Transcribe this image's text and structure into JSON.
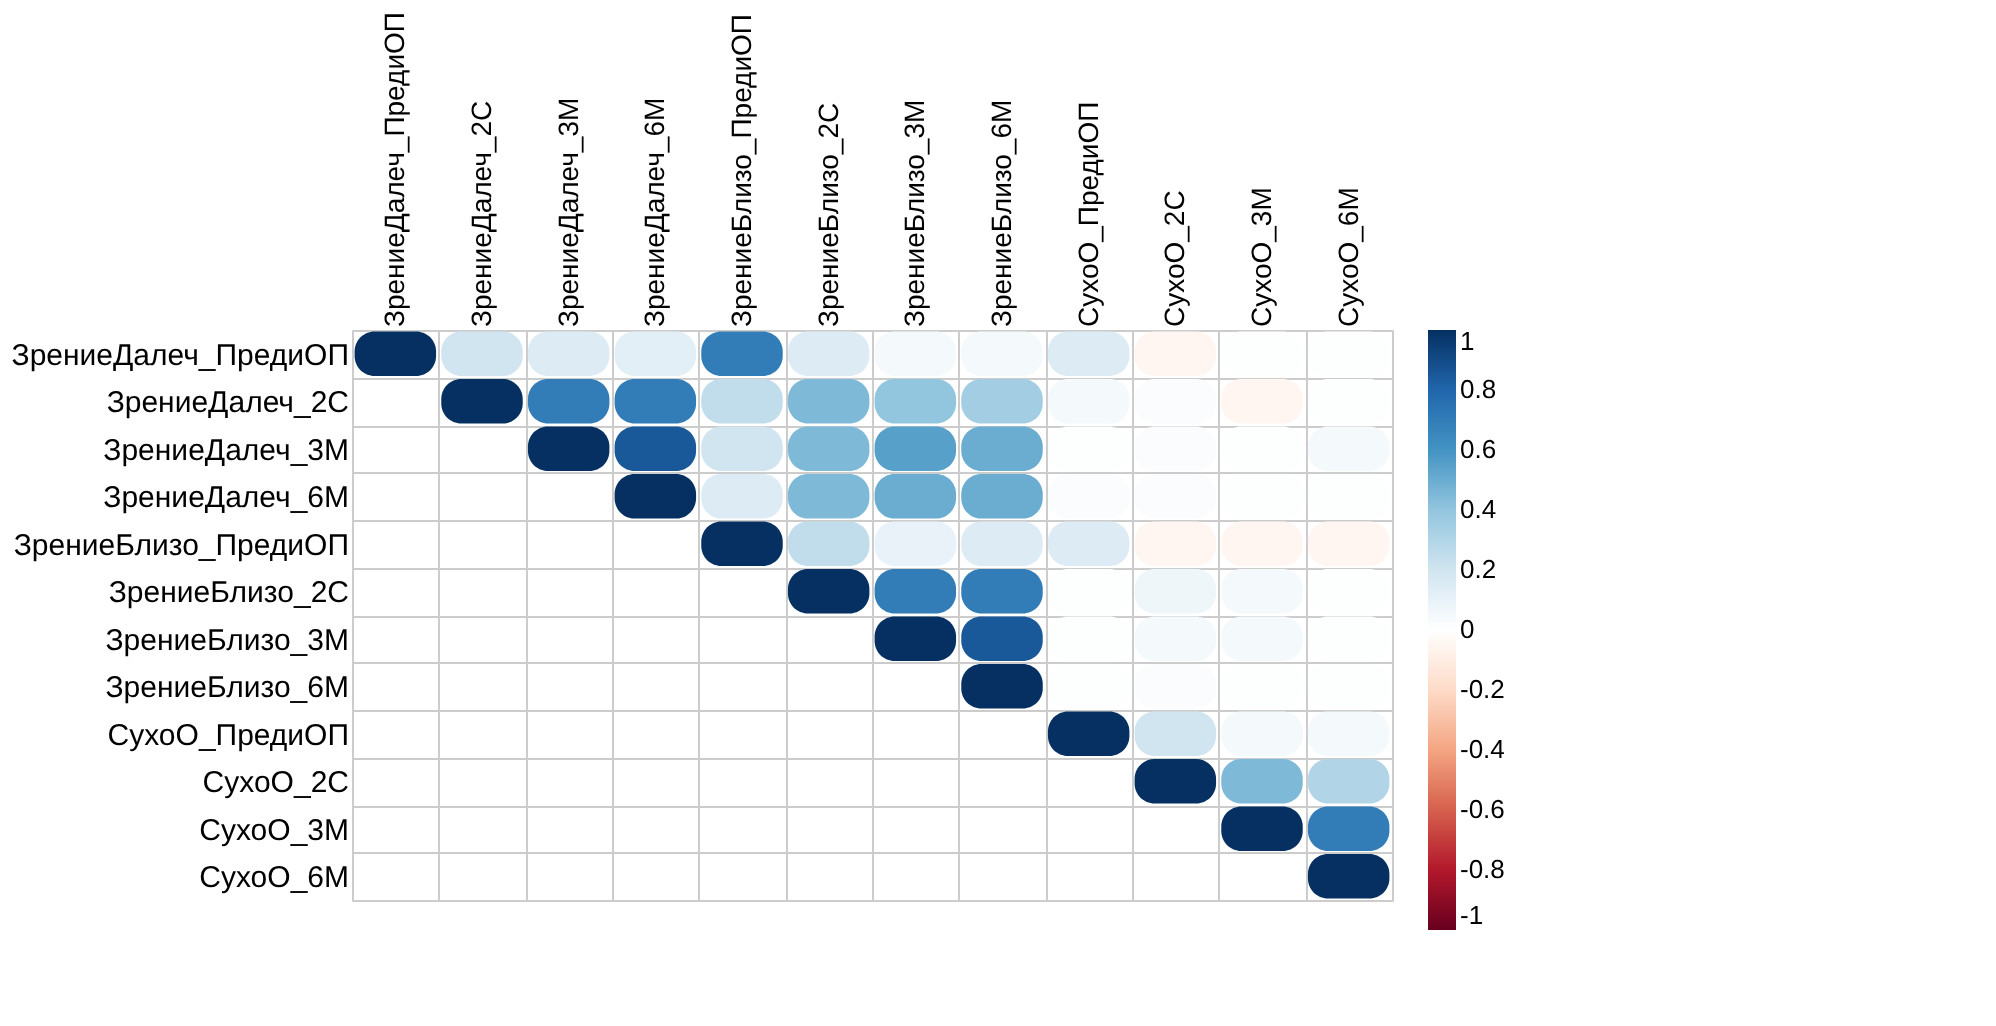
{
  "chart_data": {
    "type": "heatmap",
    "categories": [
      "ЗрениеДалеч_ПредиОП",
      "ЗрениеДалеч_2С",
      "ЗрениеДалеч_3М",
      "ЗрениеДалеч_6М",
      "ЗрениеБлизо_ПредиОП",
      "ЗрениеБлизо_2С",
      "ЗрениеБлизо_3М",
      "ЗрениеБлизо_6М",
      "СухоО_ПредиОП",
      "СухоО_2С",
      "СухоО_3М",
      "СухоО_6М"
    ],
    "y_categories": [
      "ЗрениеДалеч_ПредиОП",
      "ЗрениеДалеч_2С",
      "ЗрениеДалеч_3М",
      "ЗрениеДалеч_6М",
      "ЗрениеБлизо_ПредиОП",
      "ЗрениеБлизо_2С",
      "ЗрениеБлизо_3М",
      "ЗрениеБлизо_6М",
      "СухоО_ПредиОП",
      "СухоО_2С",
      "СухоО_3М",
      "СухоО_6М"
    ],
    "cells": [
      [
        1,
        0.2,
        0.15,
        0.12,
        0.7,
        0.15,
        0.05,
        0.05,
        0.15,
        -0.05,
        0.01,
        0.01
      ],
      [
        null,
        1,
        0.7,
        0.7,
        0.25,
        0.45,
        0.4,
        0.35,
        0.05,
        0.02,
        -0.05,
        0.01
      ],
      [
        null,
        null,
        1,
        0.85,
        0.2,
        0.45,
        0.55,
        0.5,
        0.01,
        0.02,
        0.01,
        0.05
      ],
      [
        null,
        null,
        null,
        1,
        0.15,
        0.45,
        0.5,
        0.5,
        0.02,
        0.02,
        0.01,
        0.01
      ],
      [
        null,
        null,
        null,
        null,
        1,
        0.25,
        0.1,
        0.15,
        0.15,
        -0.05,
        -0.05,
        -0.05
      ],
      [
        null,
        null,
        null,
        null,
        null,
        1,
        0.7,
        0.7,
        0.01,
        0.07,
        0.05,
        0.01
      ],
      [
        null,
        null,
        null,
        null,
        null,
        null,
        1,
        0.85,
        0.01,
        0.05,
        0.05,
        0.01
      ],
      [
        null,
        null,
        null,
        null,
        null,
        null,
        null,
        1,
        0.01,
        0.02,
        0.01,
        0.01
      ],
      [
        null,
        null,
        null,
        null,
        null,
        null,
        null,
        null,
        1,
        0.2,
        0.05,
        0.05
      ],
      [
        null,
        null,
        null,
        null,
        null,
        null,
        null,
        null,
        null,
        1,
        0.45,
        0.3
      ],
      [
        null,
        null,
        null,
        null,
        null,
        null,
        null,
        null,
        null,
        null,
        1,
        0.7
      ],
      [
        null,
        null,
        null,
        null,
        null,
        null,
        null,
        null,
        null,
        null,
        null,
        1
      ]
    ],
    "clim": [
      -1,
      1
    ],
    "cticks": [
      -1,
      -0.8,
      -0.6,
      -0.4,
      -0.2,
      0,
      0.2,
      0.4,
      0.6,
      0.8,
      1
    ]
  }
}
